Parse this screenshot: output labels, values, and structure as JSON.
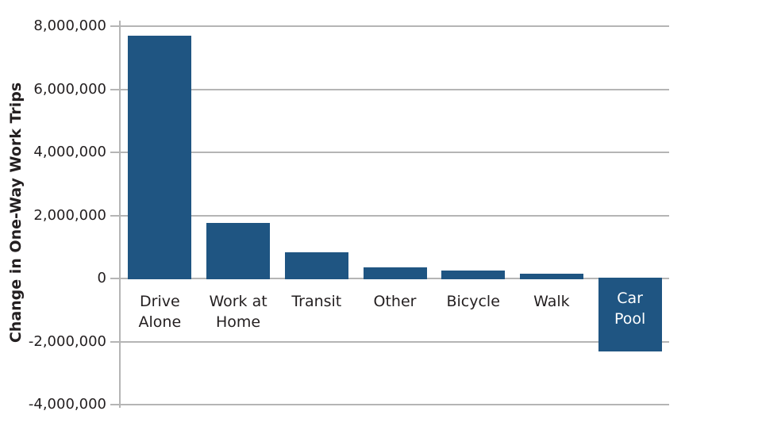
{
  "chart_data": {
    "type": "bar",
    "title": "",
    "xlabel": "",
    "ylabel": "Change in One-Way Work Trips",
    "categories": [
      "Drive Alone",
      "Work at Home",
      "Transit",
      "Other",
      "Bicycle",
      "Walk",
      "Car Pool"
    ],
    "category_label_lines": [
      [
        "Drive",
        "Alone"
      ],
      [
        "Work at",
        "Home"
      ],
      [
        "Transit"
      ],
      [
        "Other"
      ],
      [
        "Bicycle"
      ],
      [
        "Walk"
      ],
      [
        "Car",
        "Pool"
      ]
    ],
    "values": [
      7700000,
      1750000,
      830000,
      350000,
      260000,
      160000,
      -2300000
    ],
    "ylim": [
      -4000000,
      8000000
    ],
    "ytick_step": 2000000,
    "yticks": [
      {
        "value": 8000000,
        "label": "8,000,000"
      },
      {
        "value": 6000000,
        "label": "6,000,000"
      },
      {
        "value": 4000000,
        "label": "4,000,000"
      },
      {
        "value": 2000000,
        "label": "2,000,000"
      },
      {
        "value": 0,
        "label": "0"
      },
      {
        "value": -2000000,
        "label": "-2,000,000"
      },
      {
        "value": -4000000,
        "label": "-4,000,000"
      }
    ],
    "grid": true,
    "legend": null,
    "negative_bar_label_placement": "inside-white",
    "colors": {
      "bar": "#1f5582",
      "gridline": "#b5b5b5",
      "axis": "#b5b5b5",
      "text": "#231f20",
      "label_inside": "#ffffff",
      "background": "#ffffff"
    }
  }
}
